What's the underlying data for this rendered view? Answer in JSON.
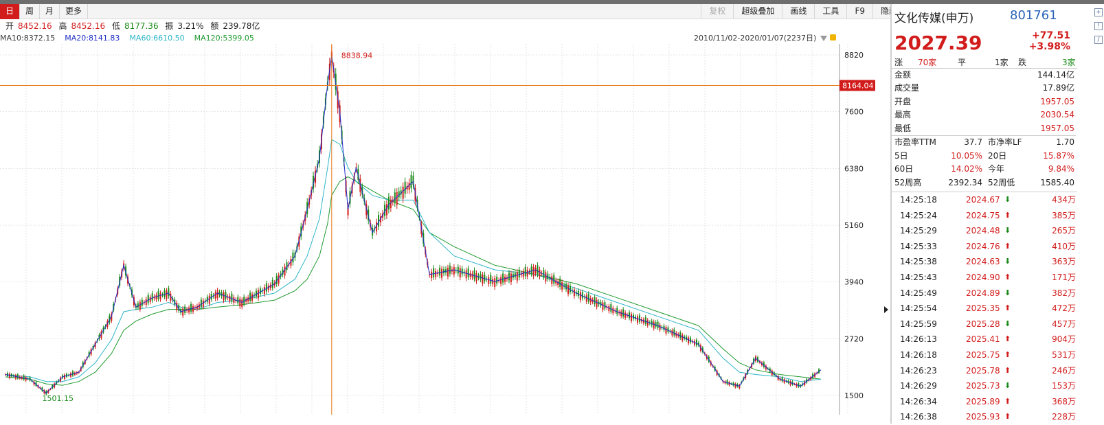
{
  "toolbar": {
    "periods": [
      "日",
      "周",
      "月",
      "更多"
    ],
    "active_period": "日",
    "right_buttons": [
      "复权",
      "超级叠加",
      "画线",
      "工具",
      "F9",
      "隐藏"
    ]
  },
  "ohlc": {
    "open_label": "开",
    "open": "8452.16",
    "high_label": "高",
    "high": "8452.16",
    "low_label": "低",
    "low": "8177.36",
    "amp_label": "振",
    "amp": "3.21%",
    "amt_label": "额",
    "amt": "239.78亿"
  },
  "ma": [
    {
      "label": "MA10:8372.15",
      "color": "#3a3a3a"
    },
    {
      "label": "MA20:8141.83",
      "color": "#1f2fc8"
    },
    {
      "label": "MA60:6610.50",
      "color": "#2fb6c8"
    },
    {
      "label": "MA120:5399.05",
      "color": "#1f9a2f"
    }
  ],
  "date_range": "2010/11/02-2020/01/07(2237日)",
  "chart_data": {
    "type": "line",
    "y_ticks": [
      8820,
      7600,
      6380,
      5160,
      3940,
      2720,
      1500
    ],
    "ylim": [
      1500,
      8820
    ],
    "crosshair_value": "8164.04",
    "annotations": [
      {
        "text": "8838.94",
        "x": 0.4,
        "y": 8838.94
      },
      {
        "text": "1501.15",
        "x": 0.04,
        "y": 1501.15
      }
    ],
    "x": [
      0.0,
      0.03,
      0.05,
      0.07,
      0.09,
      0.11,
      0.13,
      0.145,
      0.16,
      0.18,
      0.2,
      0.215,
      0.235,
      0.26,
      0.29,
      0.33,
      0.355,
      0.37,
      0.385,
      0.395,
      0.4,
      0.41,
      0.42,
      0.43,
      0.45,
      0.47,
      0.5,
      0.52,
      0.55,
      0.6,
      0.65,
      0.7,
      0.75,
      0.8,
      0.85,
      0.88,
      0.9,
      0.92,
      0.95,
      0.975,
      1.0
    ],
    "close": [
      1950,
      1850,
      1550,
      1900,
      2000,
      2600,
      3200,
      4300,
      3400,
      3600,
      3700,
      3300,
      3400,
      3700,
      3500,
      3900,
      4500,
      5500,
      6600,
      8200,
      8800,
      7600,
      5500,
      6400,
      5000,
      5600,
      6100,
      4100,
      4200,
      3950,
      4200,
      3700,
      3300,
      3000,
      2600,
      1800,
      1700,
      2300,
      1850,
      1700,
      2050
    ],
    "ma60": [
      1950,
      1900,
      1800,
      1800,
      1900,
      2200,
      2700,
      3300,
      3350,
      3400,
      3500,
      3400,
      3350,
      3500,
      3550,
      3700,
      4000,
      4500,
      5300,
      6400,
      7000,
      6900,
      6400,
      6100,
      5800,
      5700,
      5700,
      5000,
      4500,
      4200,
      4100,
      3800,
      3500,
      3200,
      2900,
      2300,
      2000,
      1950,
      1900,
      1800,
      1850
    ],
    "ma120": [
      1900,
      1850,
      1750,
      1720,
      1800,
      2000,
      2400,
      2900,
      3100,
      3250,
      3350,
      3350,
      3350,
      3400,
      3450,
      3550,
      3750,
      4000,
      4500,
      5200,
      5800,
      6100,
      6200,
      6100,
      5900,
      5700,
      5500,
      5000,
      4700,
      4300,
      4100,
      3900,
      3600,
      3300,
      3000,
      2500,
      2200,
      2050,
      1950,
      1900,
      1850
    ]
  },
  "panel": {
    "name": "文化传媒(申万)",
    "code": "801761",
    "price": "2027.39",
    "change": "+77.51",
    "change_pct": "+3.98%",
    "breadth": {
      "up_label": "涨",
      "up": "70家",
      "flat_label": "平",
      "flat": "1家",
      "down_label": "跌",
      "down": "3家"
    },
    "stats": [
      {
        "label": "金额",
        "value": "144.14亿",
        "red": false
      },
      {
        "label": "成交量",
        "value": "17.89亿",
        "red": false
      },
      {
        "label": "开盘",
        "value": "1957.05",
        "red": true
      },
      {
        "label": "最高",
        "value": "2030.54",
        "red": true
      },
      {
        "label": "最低",
        "value": "1957.05",
        "red": true
      }
    ],
    "stats2": [
      {
        "l1": "市盈率TTM",
        "v1": "37.7",
        "l2": "市净率LF",
        "v2": "1.70"
      },
      {
        "l1": "5日",
        "v1": "10.05%",
        "l2": "20日",
        "v2": "15.87%"
      },
      {
        "l1": "60日",
        "v1": "14.02%",
        "l2": "今年",
        "v2": "9.84%"
      },
      {
        "l1": "52周高",
        "v1": "2392.34",
        "l2": "52周低",
        "v2": "1585.40"
      }
    ],
    "ticks": [
      {
        "time": "14:25:18",
        "price": "2024.67",
        "dir": "down",
        "vol": "434万"
      },
      {
        "time": "14:25:24",
        "price": "2024.75",
        "dir": "up",
        "vol": "385万"
      },
      {
        "time": "14:25:29",
        "price": "2024.48",
        "dir": "down",
        "vol": "265万"
      },
      {
        "time": "14:25:33",
        "price": "2024.76",
        "dir": "up",
        "vol": "410万"
      },
      {
        "time": "14:25:38",
        "price": "2024.63",
        "dir": "down",
        "vol": "363万"
      },
      {
        "time": "14:25:43",
        "price": "2024.90",
        "dir": "up",
        "vol": "171万"
      },
      {
        "time": "14:25:49",
        "price": "2024.89",
        "dir": "down",
        "vol": "382万"
      },
      {
        "time": "14:25:54",
        "price": "2025.35",
        "dir": "up",
        "vol": "472万"
      },
      {
        "time": "14:25:59",
        "price": "2025.28",
        "dir": "down",
        "vol": "457万"
      },
      {
        "time": "14:26:13",
        "price": "2025.41",
        "dir": "up",
        "vol": "904万"
      },
      {
        "time": "14:26:18",
        "price": "2025.75",
        "dir": "up",
        "vol": "531万"
      },
      {
        "time": "14:26:23",
        "price": "2025.78",
        "dir": "up",
        "vol": "246万"
      },
      {
        "time": "14:26:29",
        "price": "2025.73",
        "dir": "down",
        "vol": "153万"
      },
      {
        "time": "14:26:34",
        "price": "2025.89",
        "dir": "up",
        "vol": "368万"
      },
      {
        "time": "14:26:38",
        "price": "2025.93",
        "dir": "up",
        "vol": "228万"
      }
    ]
  }
}
